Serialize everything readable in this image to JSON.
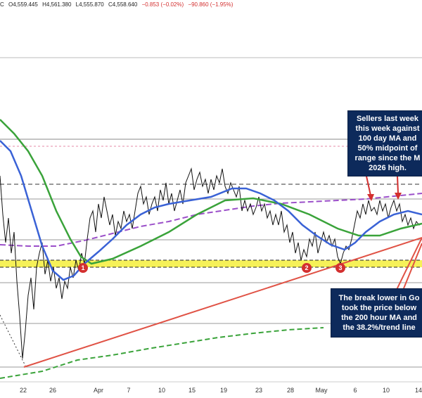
{
  "header": {
    "symbol": "C",
    "open": "O4,559.445",
    "high": "H4,561.380",
    "low": "L4,555.870",
    "close": "C4,558.640",
    "change": "−0.853 (−0.02%)",
    "change_total": "−90.860 (−1.95%)"
  },
  "callouts": {
    "sellers": [
      "Sellers last week",
      "this week against",
      "100 day MA and",
      "50% midpoint of",
      "range since the M",
      "2026 high."
    ],
    "break": [
      "The break lower in Go",
      "took the price below",
      "the 200 hour MA and",
      "the 38.2%/trend line"
    ]
  },
  "chart_data": {
    "type": "line",
    "x_ticks": [
      "22",
      "26",
      "Apr",
      "7",
      "10",
      "15",
      "19",
      "23",
      "28",
      "May",
      "6",
      "10",
      "14"
    ],
    "markers": [
      "1",
      "2",
      "3"
    ],
    "series": [
      {
        "color": "#000000",
        "style": "candles"
      },
      {
        "color": "#3a62d6",
        "style": "solid"
      },
      {
        "color": "#3aa33a",
        "style": "solid"
      },
      {
        "color": "#9b4fc9",
        "style": "dashed"
      },
      {
        "color": "#3aa33a",
        "style": "dashed"
      },
      {
        "color": "#e05245",
        "style": "trendline"
      }
    ],
    "support_zone_color": "#f5ef3b",
    "grid": false
  }
}
